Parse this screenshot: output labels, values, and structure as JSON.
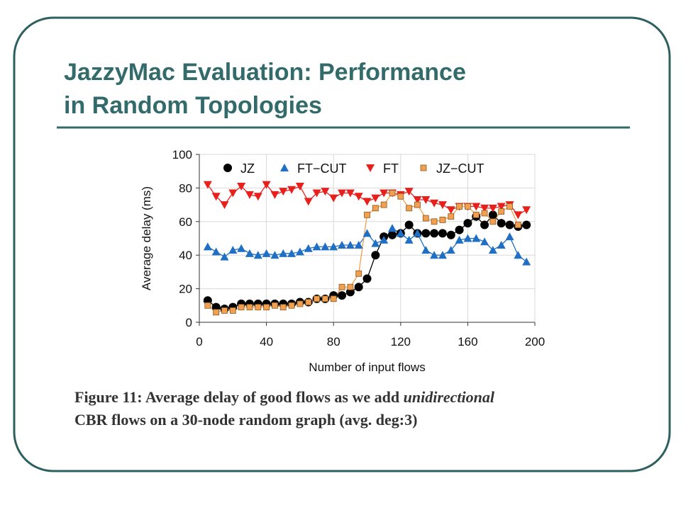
{
  "slide": {
    "title_lines": [
      "JazzyMac Evaluation: Performance",
      "in Random Topologies"
    ],
    "caption": [
      "Figure 11:  Average delay of good flows as we add ",
      "unidirectional",
      "CBR flows on a 30-node random graph (avg. deg:3)"
    ]
  },
  "chart_data": {
    "type": "line",
    "xlabel": "Number of input flows",
    "ylabel": "Average delay (ms)",
    "x": [
      5,
      10,
      15,
      20,
      25,
      30,
      35,
      40,
      45,
      50,
      55,
      60,
      65,
      70,
      75,
      80,
      85,
      90,
      95,
      100,
      105,
      110,
      115,
      120,
      125,
      130,
      135,
      140,
      145,
      150,
      155,
      160,
      165,
      170,
      175,
      180,
      185,
      190,
      195
    ],
    "series": [
      {
        "name": "JZ",
        "color": "#000000",
        "marker": "circle",
        "values": [
          13,
          9,
          8,
          9,
          11,
          11,
          11,
          11,
          11,
          11,
          11,
          12,
          12,
          14,
          14,
          16,
          16,
          18,
          21,
          26,
          40,
          51,
          52,
          53,
          58,
          53,
          53,
          53,
          53,
          52,
          55,
          59,
          63,
          58,
          64,
          59,
          58,
          57,
          58
        ]
      },
      {
        "name": "FT−CUT",
        "color": "#1f6fc5",
        "marker": "triangle-up",
        "values": [
          45,
          42,
          39,
          43,
          44,
          41,
          40,
          41,
          40,
          41,
          41,
          42,
          44,
          45,
          45,
          45,
          46,
          46,
          46,
          53,
          47,
          49,
          56,
          53,
          49,
          53,
          43,
          40,
          40,
          43,
          49,
          50,
          50,
          48,
          43,
          46,
          51,
          40,
          36
        ]
      },
      {
        "name": "FT",
        "color": "#e8201c",
        "marker": "triangle-down",
        "values": [
          82,
          75,
          70,
          77,
          81,
          76,
          75,
          82,
          76,
          78,
          79,
          81,
          72,
          77,
          78,
          74,
          77,
          77,
          75,
          72,
          74,
          77,
          77,
          76,
          78,
          73,
          73,
          71,
          70,
          67,
          69,
          69,
          69,
          68,
          68,
          69,
          70,
          64,
          67
        ]
      },
      {
        "name": "JZ−CUT",
        "color": "#f0a050",
        "marker": "square",
        "values": [
          10,
          6,
          7,
          7,
          9,
          9,
          9,
          9,
          10,
          9,
          10,
          11,
          12,
          14,
          14,
          14,
          21,
          21,
          29,
          64,
          68,
          70,
          77,
          75,
          68,
          70,
          62,
          60,
          61,
          63,
          69,
          69,
          64,
          65,
          60,
          66,
          69,
          58,
          null
        ]
      }
    ],
    "xlim": [
      0,
      200
    ],
    "xticks": [
      0,
      40,
      80,
      120,
      160,
      200
    ],
    "ylim": [
      0,
      100
    ],
    "yticks": [
      0,
      20,
      40,
      60,
      80,
      100
    ],
    "grid": true,
    "legend": "top"
  }
}
